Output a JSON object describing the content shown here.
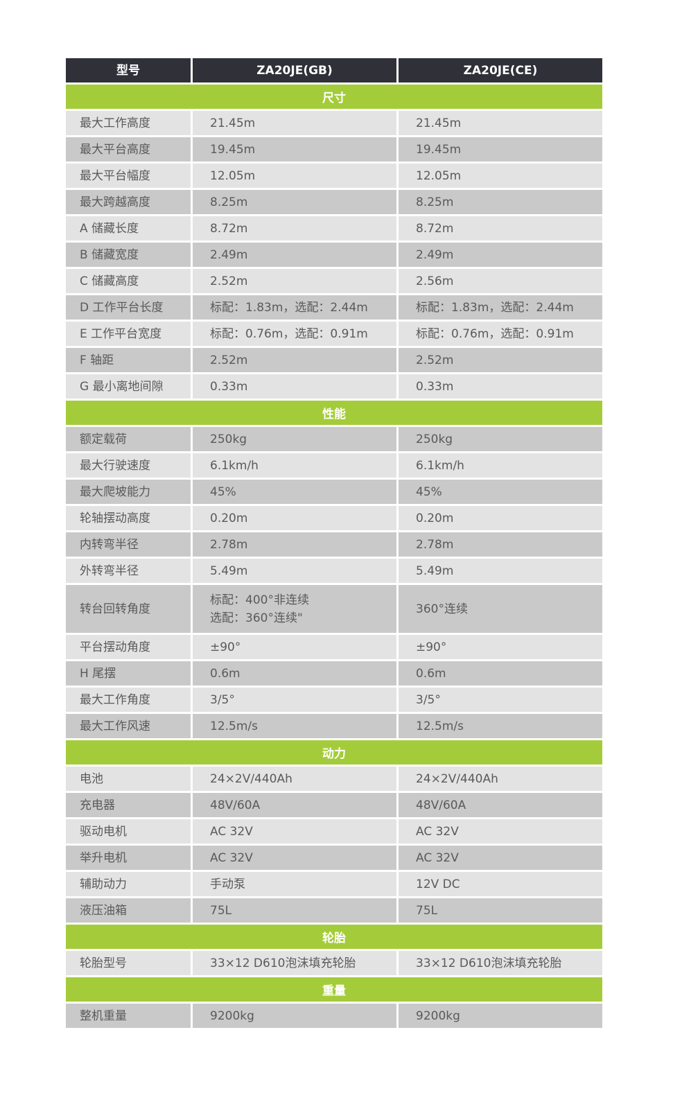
{
  "colors": {
    "header_bg": "#2f3038",
    "section_bg": "#a4cc3a",
    "row_light": "#e3e3e3",
    "row_dark": "#c9c9c9",
    "text": "#5a5a5a"
  },
  "header": [
    "型号",
    "ZA20JE(GB)",
    "ZA20JE(CE)"
  ],
  "sections": [
    {
      "title": "尺寸",
      "rows": [
        {
          "shade": "light",
          "cells": [
            "最大工作高度",
            "21.45m",
            "21.45m"
          ]
        },
        {
          "shade": "dark",
          "cells": [
            "最大平台高度",
            "19.45m",
            "19.45m"
          ]
        },
        {
          "shade": "light",
          "cells": [
            "最大平台幅度",
            "12.05m",
            "12.05m"
          ]
        },
        {
          "shade": "dark",
          "cells": [
            "最大跨越高度",
            "8.25m",
            "8.25m"
          ]
        },
        {
          "shade": "light",
          "cells": [
            "A 储藏长度",
            "8.72m",
            "8.72m"
          ]
        },
        {
          "shade": "dark",
          "cells": [
            "B 储藏宽度",
            "2.49m",
            "2.49m"
          ]
        },
        {
          "shade": "light",
          "cells": [
            "C 储藏高度",
            "2.52m",
            "2.56m"
          ]
        },
        {
          "shade": "dark",
          "cells": [
            "D 工作平台长度",
            "标配：1.83m，选配：2.44m",
            "标配：1.83m，选配：2.44m"
          ]
        },
        {
          "shade": "light",
          "cells": [
            "E 工作平台宽度",
            "标配：0.76m，选配：0.91m",
            "标配：0.76m，选配：0.91m"
          ]
        },
        {
          "shade": "dark",
          "cells": [
            "F 轴距",
            "2.52m",
            "2.52m"
          ]
        },
        {
          "shade": "light",
          "cells": [
            "G 最小离地间隙",
            "0.33m",
            "0.33m"
          ]
        }
      ]
    },
    {
      "title": "性能",
      "rows": [
        {
          "shade": "dark",
          "cells": [
            "额定载荷",
            "250kg",
            "250kg"
          ]
        },
        {
          "shade": "light",
          "cells": [
            "最大行驶速度",
            "6.1km/h",
            "6.1km/h"
          ]
        },
        {
          "shade": "dark",
          "cells": [
            "最大爬坡能力",
            "45%",
            "45%"
          ]
        },
        {
          "shade": "light",
          "cells": [
            "轮轴摆动高度",
            "0.20m",
            "0.20m"
          ]
        },
        {
          "shade": "dark",
          "cells": [
            "内转弯半径",
            "2.78m",
            "2.78m"
          ]
        },
        {
          "shade": "light",
          "cells": [
            "外转弯半径",
            "5.49m",
            "5.49m"
          ]
        },
        {
          "shade": "dark",
          "tall": true,
          "cells": [
            "转台回转角度",
            "标配：400°非连续\n选配：360°连续\"",
            "360°连续"
          ]
        },
        {
          "shade": "light",
          "cells": [
            "平台摆动角度",
            "±90°",
            "±90°"
          ]
        },
        {
          "shade": "dark",
          "cells": [
            "H 尾摆",
            "0.6m",
            "0.6m"
          ]
        },
        {
          "shade": "light",
          "cells": [
            "最大工作角度",
            "3/5°",
            "3/5°"
          ]
        },
        {
          "shade": "dark",
          "cells": [
            "最大工作风速",
            "12.5m/s",
            "12.5m/s"
          ]
        }
      ]
    },
    {
      "title": "动力",
      "rows": [
        {
          "shade": "light",
          "cells": [
            "电池",
            "24×2V/440Ah",
            "24×2V/440Ah"
          ]
        },
        {
          "shade": "dark",
          "cells": [
            "充电器",
            "48V/60A",
            "48V/60A"
          ]
        },
        {
          "shade": "light",
          "cells": [
            "驱动电机",
            "AC 32V",
            "AC 32V"
          ]
        },
        {
          "shade": "dark",
          "cells": [
            "举升电机",
            "AC 32V",
            "AC 32V"
          ]
        },
        {
          "shade": "light",
          "cells": [
            "辅助动力",
            "手动泵",
            "12V DC"
          ]
        },
        {
          "shade": "dark",
          "cells": [
            "液压油箱",
            "75L",
            "75L"
          ]
        }
      ]
    },
    {
      "title": "轮胎",
      "rows": [
        {
          "shade": "light",
          "cells": [
            "轮胎型号",
            "33×12 D610泡沫填充轮胎",
            "33×12 D610泡沫填充轮胎"
          ]
        }
      ]
    },
    {
      "title": "重量",
      "rows": [
        {
          "shade": "dark",
          "cells": [
            "整机重量",
            "9200kg",
            "9200kg"
          ]
        }
      ]
    }
  ]
}
